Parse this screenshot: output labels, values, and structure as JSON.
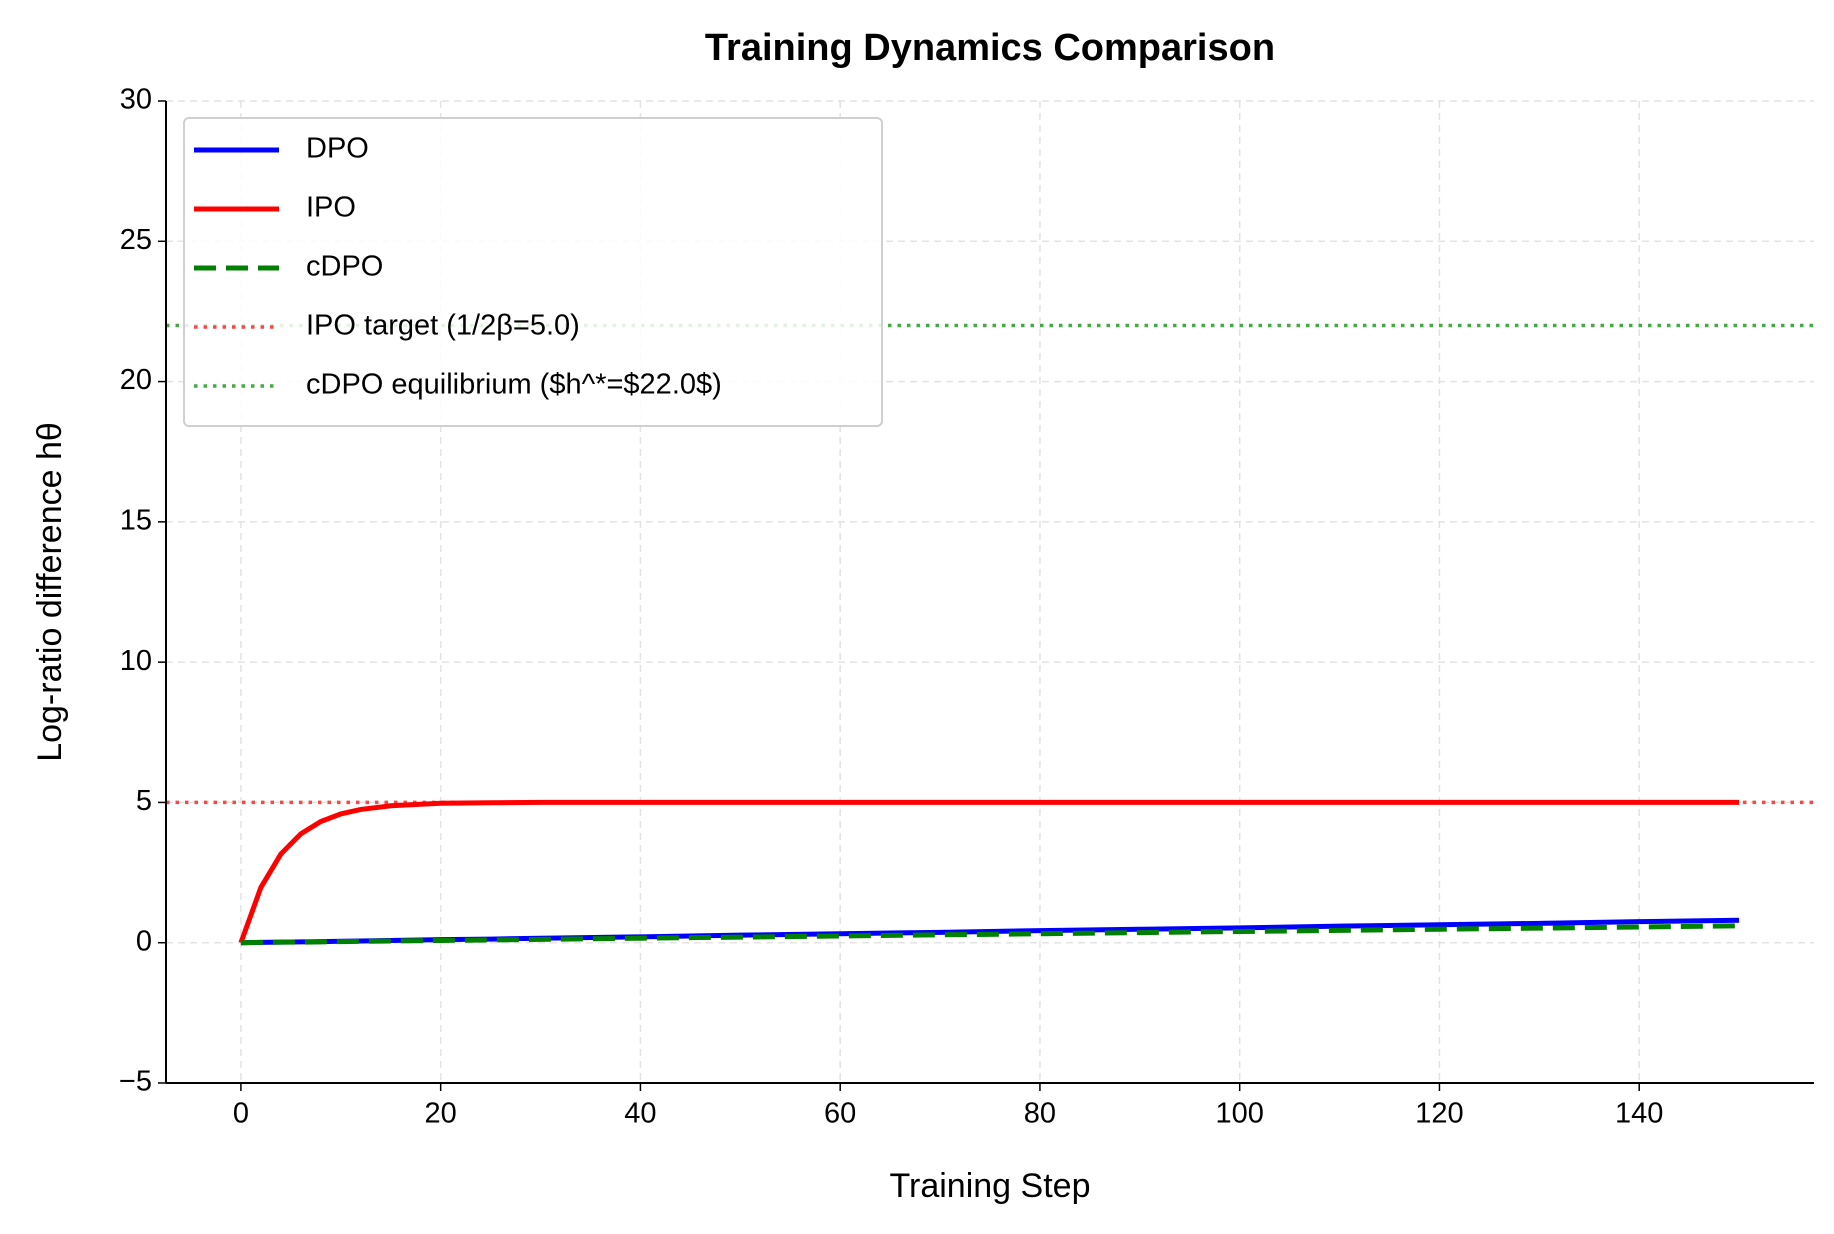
{
  "chart_data": {
    "type": "line",
    "title": "Training Dynamics Comparison",
    "x_label": "Training Step",
    "y_label": "Log-ratio difference hθ",
    "x": [
      0,
      2,
      4,
      6,
      8,
      10,
      12,
      15,
      20,
      25,
      30,
      40,
      50,
      60,
      70,
      80,
      90,
      100,
      110,
      120,
      130,
      140,
      150
    ],
    "series": [
      {
        "name": "DPO",
        "color": "#0000ff",
        "dash": "solid",
        "values": [
          0,
          0.01,
          0.02,
          0.03,
          0.04,
          0.05,
          0.06,
          0.08,
          0.11,
          0.13,
          0.16,
          0.21,
          0.27,
          0.32,
          0.37,
          0.43,
          0.48,
          0.53,
          0.59,
          0.64,
          0.69,
          0.75,
          0.8
        ]
      },
      {
        "name": "IPO",
        "color": "#ff0000",
        "dash": "solid",
        "values": [
          0,
          1.97,
          3.16,
          3.88,
          4.32,
          4.59,
          4.75,
          4.88,
          4.97,
          4.99,
          5,
          5,
          5,
          5,
          5,
          5,
          5,
          5,
          5,
          5,
          5,
          5,
          5
        ]
      },
      {
        "name": "cDPO",
        "color": "#008000",
        "dash": "dashed",
        "values": [
          0,
          0.01,
          0.02,
          0.02,
          0.03,
          0.04,
          0.05,
          0.06,
          0.08,
          0.1,
          0.12,
          0.16,
          0.2,
          0.24,
          0.28,
          0.32,
          0.36,
          0.4,
          0.44,
          0.48,
          0.52,
          0.56,
          0.6
        ]
      }
    ],
    "reference_lines": [
      {
        "name": "IPO target (1/2β=5.0)",
        "value": 5,
        "color": "#ff4444"
      },
      {
        "name": "cDPO equilibrium ($h^*=$22.0$)",
        "value": 22,
        "color": "#44aa44"
      }
    ],
    "xlim": [
      -7.5,
      157.5
    ],
    "ylim": [
      -5,
      30
    ],
    "xticks": [
      0,
      20,
      40,
      60,
      80,
      100,
      120,
      140
    ],
    "yticks": [
      {
        "value": -5,
        "label": "−5"
      },
      0,
      5,
      10,
      15,
      20,
      25,
      30
    ],
    "grid": true,
    "legend": "upper left"
  }
}
